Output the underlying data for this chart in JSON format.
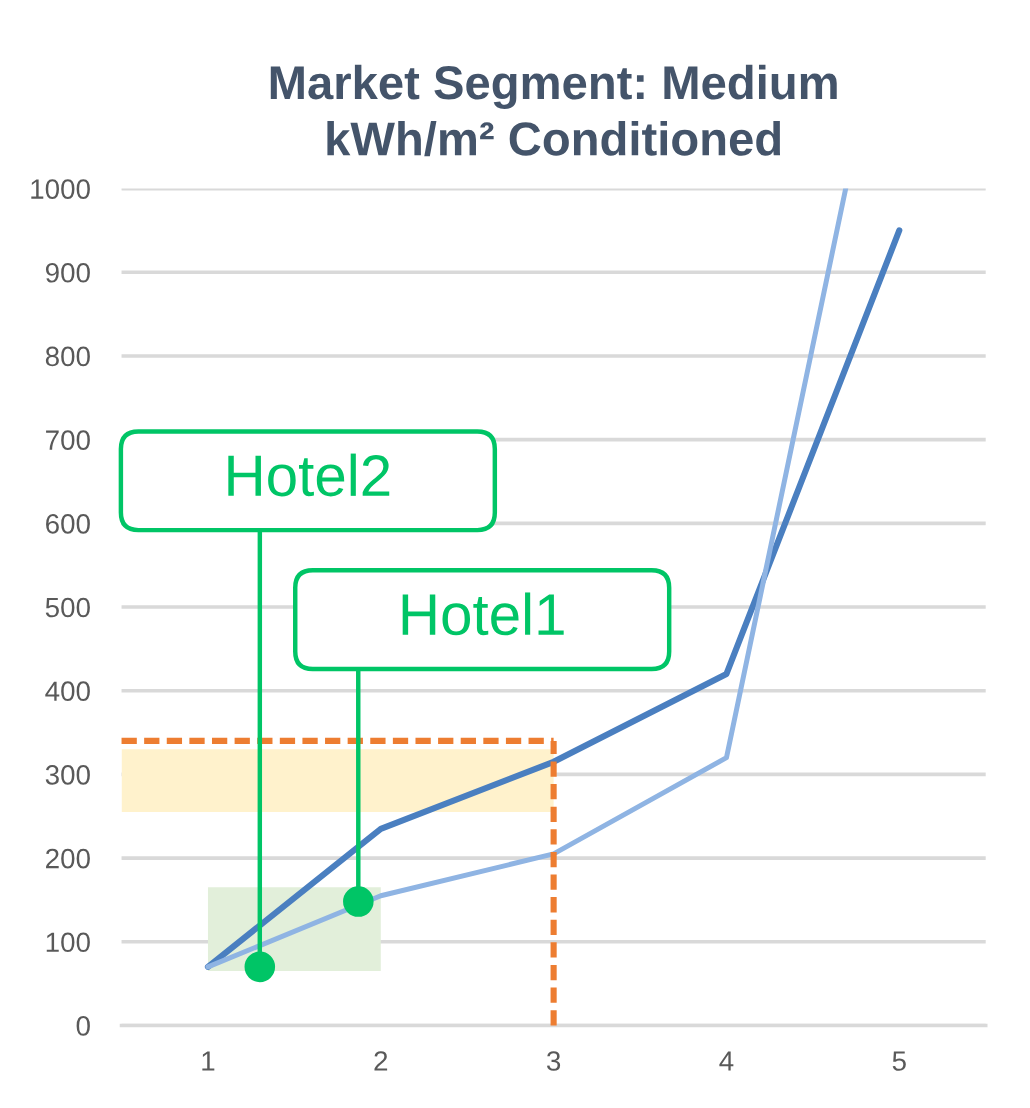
{
  "chart_data": {
    "type": "line",
    "title": "Market Segment: Medium\nkWh/m² Conditioned",
    "x": [
      1,
      2,
      3,
      4,
      5
    ],
    "series": [
      {
        "color": "#4a7fc0",
        "values": [
          70,
          235,
          315,
          420,
          950
        ]
      },
      {
        "color": "#8fb4e3",
        "x": [
          1,
          2,
          3,
          4,
          4.69
        ],
        "values": [
          70,
          155,
          205,
          320,
          1000
        ]
      }
    ],
    "xlim": [
      0.5,
      5.5
    ],
    "xticks": [
      1,
      2,
      3,
      4,
      5
    ],
    "ylim": [
      0,
      1000
    ],
    "yticks": [
      0,
      100,
      200,
      300,
      400,
      500,
      600,
      700,
      800,
      900,
      1000
    ],
    "grid": "y",
    "ref_lines": [
      {
        "axis": "y",
        "value": 340,
        "color": "#ed7d31",
        "line_style": "dashed"
      },
      {
        "axis": "x",
        "value": 3,
        "color": "#ed7d31",
        "line_style": "dashed"
      }
    ],
    "bands": [
      {
        "axis": "y",
        "from": 255,
        "to": 330,
        "color": "#fff2cc"
      },
      {
        "axis": "y",
        "from": 65,
        "to": 165,
        "color": "#e2efda"
      }
    ],
    "annotations": [
      {
        "text": "Hotel2",
        "x": 1.3,
        "y": 70
      },
      {
        "text": "Hotel1",
        "x": 1.87,
        "y": 148
      }
    ]
  }
}
